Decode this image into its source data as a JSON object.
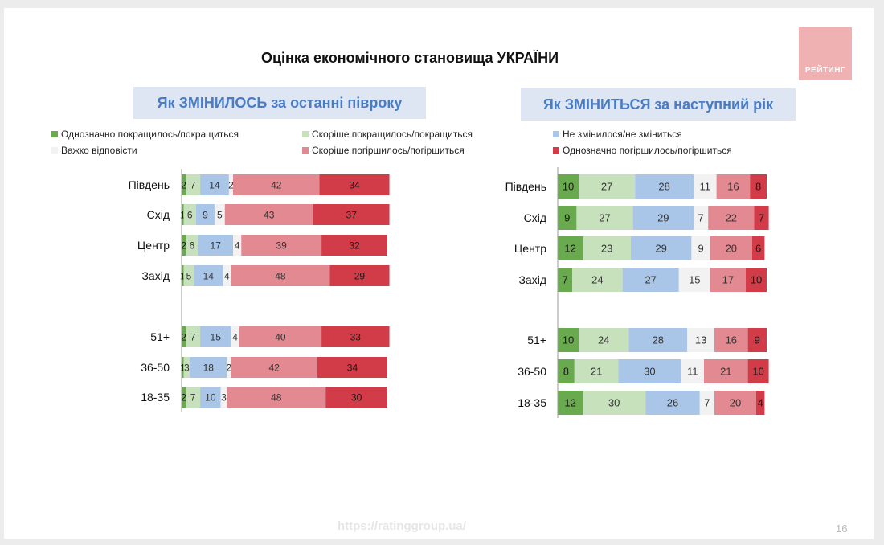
{
  "title": "Оцінка економічного становища УКРАЇНИ",
  "logo_text": "РЕЙТИНГ",
  "footer_url": "https://ratinggroup.ua/",
  "page_number": "16",
  "colors": {
    "strong_better": "#6aaa4e",
    "somewhat_better": "#c7e1bc",
    "no_change": "#a9c6e8",
    "hard_to_say": "#f2f2f2",
    "somewhat_worse": "#e38991",
    "strong_worse": "#d23c48"
  },
  "legend": {
    "strong_better": "Однозначно покращилось/покращиться",
    "somewhat_better": "Скоріше покращилось/покращиться",
    "no_change": "Не змінилося/не зміниться",
    "hard_to_say": "Важко відповісти",
    "somewhat_worse": "Скоріше погіршилось/погіршиться",
    "strong_worse": "Однозначно погіршилось/погіршиться"
  },
  "chart_data": [
    {
      "type": "bar",
      "stacked": true,
      "orientation": "horizontal",
      "title": "Як ЗМІНИЛОСЬ за останні півроку",
      "categories": [
        "Південь",
        "Схід",
        "Центр",
        "Захід",
        "51+",
        "36-50",
        "18-35"
      ],
      "series": [
        {
          "key": "strong_better",
          "name": "Однозначно покращилось/покращиться",
          "values": [
            2,
            1,
            2,
            1,
            2,
            1,
            2
          ]
        },
        {
          "key": "somewhat_better",
          "name": "Скоріше покращилось/покращиться",
          "values": [
            7,
            6,
            6,
            5,
            7,
            3,
            7
          ]
        },
        {
          "key": "no_change",
          "name": "Не змінилося/не зміниться",
          "values": [
            14,
            9,
            17,
            14,
            15,
            18,
            10
          ]
        },
        {
          "key": "hard_to_say",
          "name": "Важко відповісти",
          "values": [
            2,
            5,
            4,
            4,
            4,
            2,
            3
          ]
        },
        {
          "key": "somewhat_worse",
          "name": "Скоріше погіршилось/погіршиться",
          "values": [
            42,
            43,
            39,
            48,
            40,
            42,
            48
          ]
        },
        {
          "key": "strong_worse",
          "name": "Однозначно погіршилось/погіршиться",
          "values": [
            34,
            37,
            32,
            29,
            33,
            34,
            30
          ]
        }
      ]
    },
    {
      "type": "bar",
      "stacked": true,
      "orientation": "horizontal",
      "title": "Як ЗМІНИТЬСЯ за наступний рік",
      "categories": [
        "Південь",
        "Схід",
        "Центр",
        "Захід",
        "51+",
        "36-50",
        "18-35"
      ],
      "series": [
        {
          "key": "strong_better",
          "name": "Однозначно покращилось/покращиться",
          "values": [
            10,
            9,
            12,
            7,
            10,
            8,
            12
          ]
        },
        {
          "key": "somewhat_better",
          "name": "Скоріше покращилось/покращиться",
          "values": [
            27,
            27,
            23,
            24,
            24,
            21,
            30
          ]
        },
        {
          "key": "no_change",
          "name": "Не змінилося/не зміниться",
          "values": [
            28,
            29,
            29,
            27,
            28,
            30,
            26
          ]
        },
        {
          "key": "hard_to_say",
          "name": "Важко відповісти",
          "values": [
            11,
            7,
            9,
            15,
            13,
            11,
            7
          ]
        },
        {
          "key": "somewhat_worse",
          "name": "Скоріше погіршилось/погіршиться",
          "values": [
            16,
            22,
            20,
            17,
            16,
            21,
            20
          ]
        },
        {
          "key": "strong_worse",
          "name": "Однозначно погіршилось/погіршиться",
          "values": [
            8,
            7,
            6,
            10,
            9,
            10,
            4
          ]
        }
      ]
    }
  ]
}
